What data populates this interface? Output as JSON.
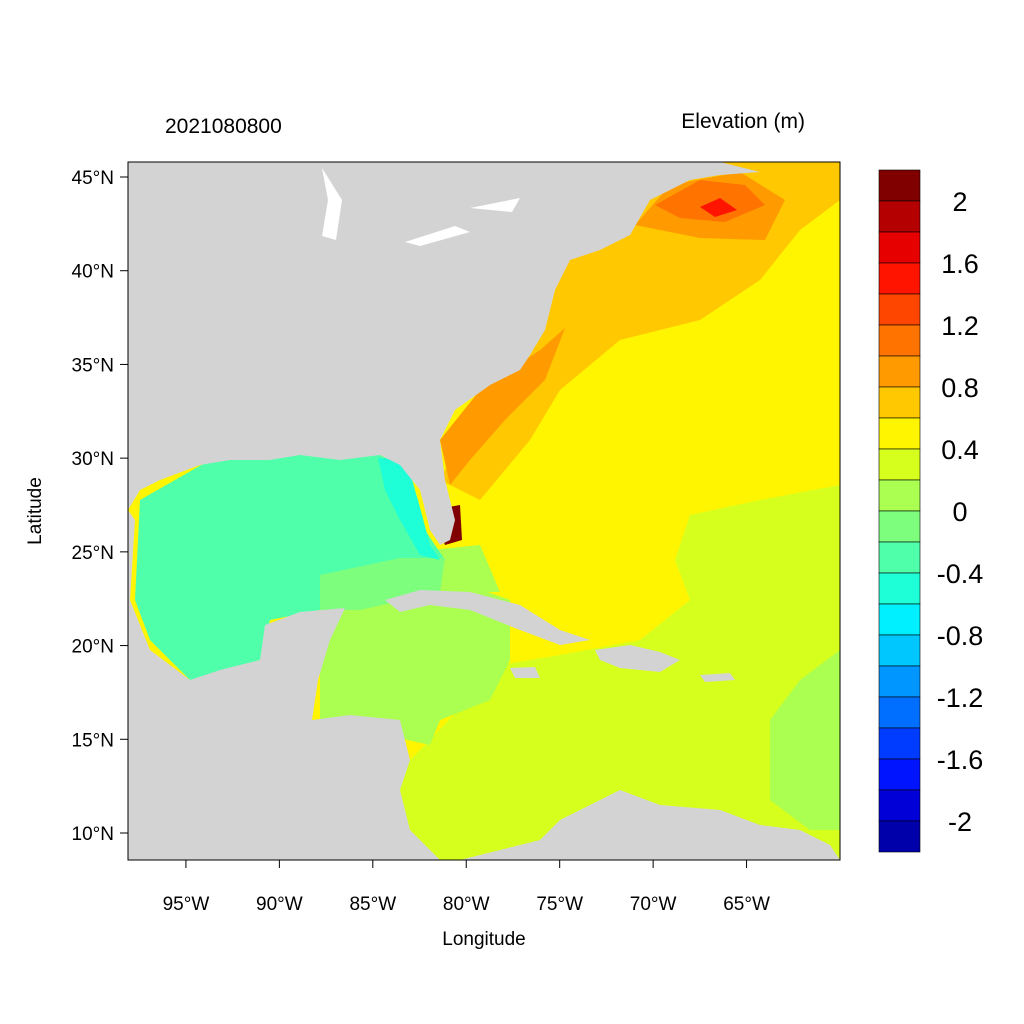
{
  "title_left": "2021080800",
  "title_right": "Elevation (m)",
  "xlabel": "Longitude",
  "ylabel": "Latitude",
  "map": {
    "lon_range": [
      -98.1,
      -60.0
    ],
    "lat_range": [
      8.56,
      45.8
    ],
    "land_color": "#d3d3d3",
    "lake_color": "#ffffff",
    "lon_ticks": [
      {
        "value": -95,
        "label": "95°W"
      },
      {
        "value": -90,
        "label": "90°W"
      },
      {
        "value": -85,
        "label": "85°W"
      },
      {
        "value": -80,
        "label": "80°W"
      },
      {
        "value": -75,
        "label": "75°W"
      },
      {
        "value": -70,
        "label": "70°W"
      },
      {
        "value": -65,
        "label": "65°W"
      }
    ],
    "lat_ticks": [
      {
        "value": 45,
        "label": "45°N"
      },
      {
        "value": 40,
        "label": "40°N"
      },
      {
        "value": 35,
        "label": "35°N"
      },
      {
        "value": 30,
        "label": "30°N"
      },
      {
        "value": 25,
        "label": "25°N"
      },
      {
        "value": 20,
        "label": "20°N"
      },
      {
        "value": 15,
        "label": "15°N"
      },
      {
        "value": 10,
        "label": "10°N"
      }
    ]
  },
  "colorbar": {
    "colors_top_to_bottom": [
      "#800000",
      "#b40000",
      "#e60000",
      "#ff1400",
      "#ff4600",
      "#ff7300",
      "#ff9b00",
      "#ffc800",
      "#fff500",
      "#d7ff1e",
      "#aaff50",
      "#7dff7d",
      "#50ffaa",
      "#1effd7",
      "#00f0ff",
      "#00c8ff",
      "#0096ff",
      "#006eff",
      "#003cff",
      "#0014ff",
      "#0000d7",
      "#0000aa"
    ],
    "labels": [
      "2",
      "1.6",
      "1.2",
      "0.8",
      "0.4",
      "0",
      "-0.4",
      "-0.8",
      "-1.2",
      "-1.6",
      "-2"
    ]
  }
}
